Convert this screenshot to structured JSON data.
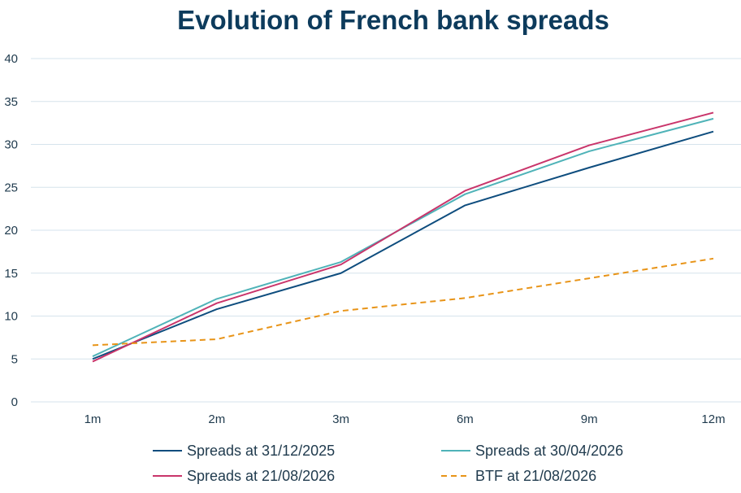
{
  "chart_data": {
    "type": "line",
    "title": "Evolution of French bank spreads",
    "xlabel": "",
    "ylabel": "",
    "categories": [
      "1m",
      "2m",
      "3m",
      "6m",
      "9m",
      "12m"
    ],
    "ylim": [
      0,
      40
    ],
    "yticks": [
      0,
      5,
      10,
      15,
      20,
      25,
      30,
      35,
      40
    ],
    "grid": true,
    "legend_position": "bottom",
    "series": [
      {
        "name": "Spreads at 31/12/2025",
        "color": "#0e4d7e",
        "dash": "solid",
        "values": [
          5.0,
          10.8,
          15.0,
          22.9,
          27.3,
          31.5
        ]
      },
      {
        "name": "Spreads at 30/04/2026",
        "color": "#4fb3b8",
        "dash": "solid",
        "values": [
          5.3,
          12.0,
          16.3,
          24.2,
          29.2,
          33.0
        ]
      },
      {
        "name": "Spreads at 21/08/2026",
        "color": "#c9356b",
        "dash": "solid",
        "values": [
          4.7,
          11.5,
          16.0,
          24.6,
          29.9,
          33.7
        ]
      },
      {
        "name": "BTF at 21/08/2026",
        "color": "#e89418",
        "dash": "dashed",
        "values": [
          6.6,
          7.3,
          10.6,
          12.1,
          14.4,
          16.7
        ]
      }
    ]
  }
}
